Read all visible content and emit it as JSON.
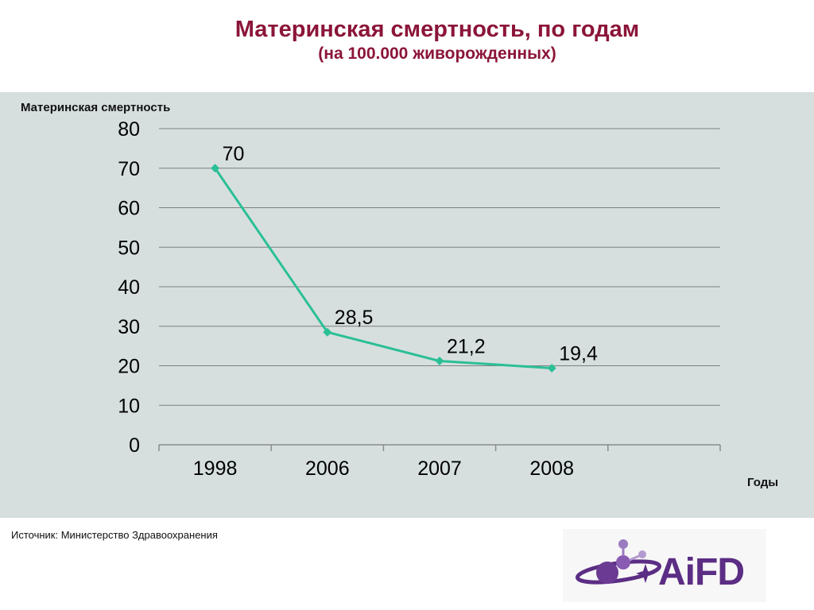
{
  "header": {
    "title": "Материнская смертность, по годам",
    "subtitle": "(на 100.000 живорожденных)"
  },
  "footer": {
    "source": "Источник: Министерство Здравоохранения",
    "logo_text": "AiFD"
  },
  "colors": {
    "title": "#8b1538",
    "line": "#2bbf96",
    "panel": "#d6dfde",
    "logo": "#5b2d84"
  },
  "chart_data": {
    "type": "line",
    "title": "Материнская смертность, по годам",
    "subtitle": "(на 100.000 живорожденных)",
    "ylabel": "Материнская смертность",
    "xlabel": "Годы",
    "categories": [
      "1998",
      "2006",
      "2007",
      "2008"
    ],
    "series": [
      {
        "values": [
          70,
          28.5,
          21.2,
          19.4
        ]
      }
    ],
    "data_labels": [
      "70",
      "28,5",
      "21,2",
      "19,4"
    ],
    "y_ticks": [
      0,
      10,
      20,
      30,
      40,
      50,
      60,
      70,
      80
    ],
    "ylim": [
      0,
      80
    ],
    "x_slots": 5,
    "grid": true,
    "legend": "none"
  }
}
